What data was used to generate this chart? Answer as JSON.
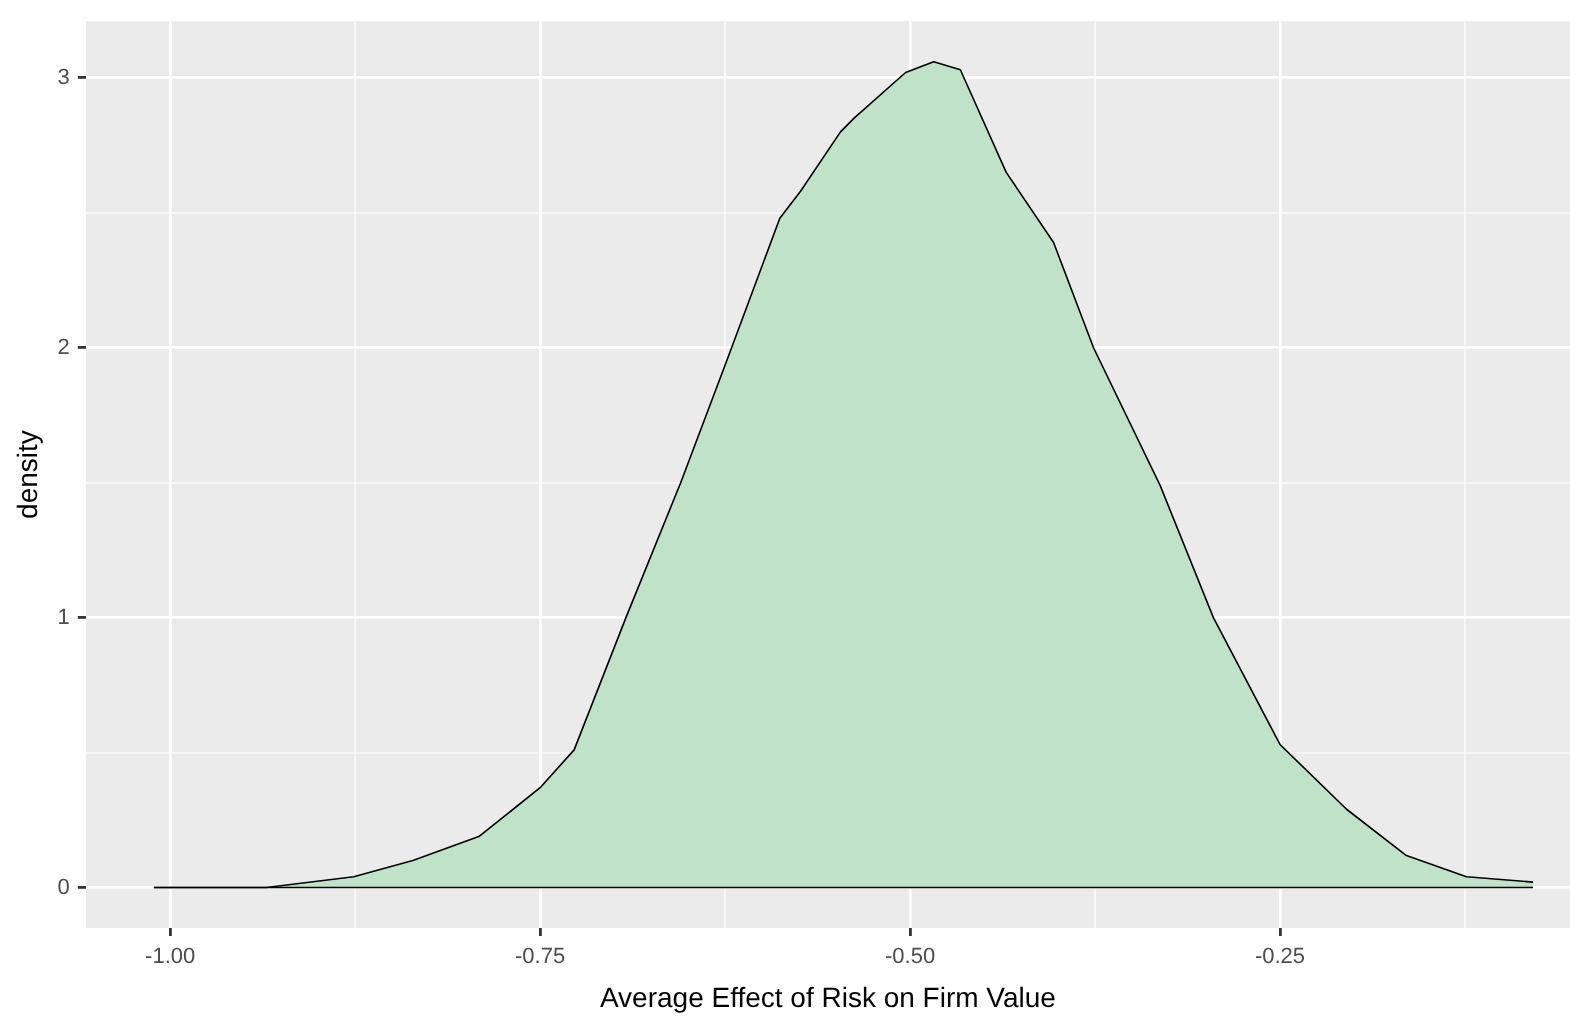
{
  "chart_data": {
    "type": "area",
    "xlabel": "Average Effect of Risk on Firm Value",
    "ylabel": "density",
    "x": [
      -1.011,
      -0.935,
      -0.876,
      -0.836,
      -0.791,
      -0.75,
      -0.727,
      -0.692,
      -0.655,
      -0.624,
      -0.588,
      -0.574,
      -0.547,
      -0.538,
      -0.503,
      -0.484,
      -0.466,
      -0.435,
      -0.403,
      -0.376,
      -0.331,
      -0.295,
      -0.25,
      -0.205,
      -0.165,
      -0.124,
      -0.079
    ],
    "series": [
      {
        "color": "#bfe2c8",
        "values": [
          0,
          0,
          0.04,
          0.1,
          0.19,
          0.37,
          0.51,
          1.0,
          1.5,
          1.95,
          2.48,
          2.58,
          2.8,
          2.85,
          3.02,
          3.06,
          3.03,
          2.65,
          2.39,
          2.0,
          1.49,
          1.0,
          0.53,
          0.29,
          0.12,
          0.04,
          0.02
        ]
      }
    ],
    "xlim": [
      -1.057,
      -0.054
    ],
    "ylim": [
      -0.15,
      3.21
    ],
    "xticks": [
      {
        "value": -1.0,
        "label": "-1.00"
      },
      {
        "value": -0.875,
        "label": null
      },
      -0.75,
      {
        "value": -0.625,
        "label": null
      },
      {
        "value": -0.5,
        "label": "-0.50"
      },
      {
        "value": -0.375,
        "label": null
      },
      -0.25,
      {
        "value": -0.125,
        "label": null
      }
    ],
    "yticks": [
      0,
      {
        "value": 0.5,
        "label": null
      },
      1,
      {
        "value": 1.5,
        "label": null
      },
      2,
      {
        "value": 2.5,
        "label": null
      },
      3
    ],
    "grid": true,
    "legend": false
  }
}
